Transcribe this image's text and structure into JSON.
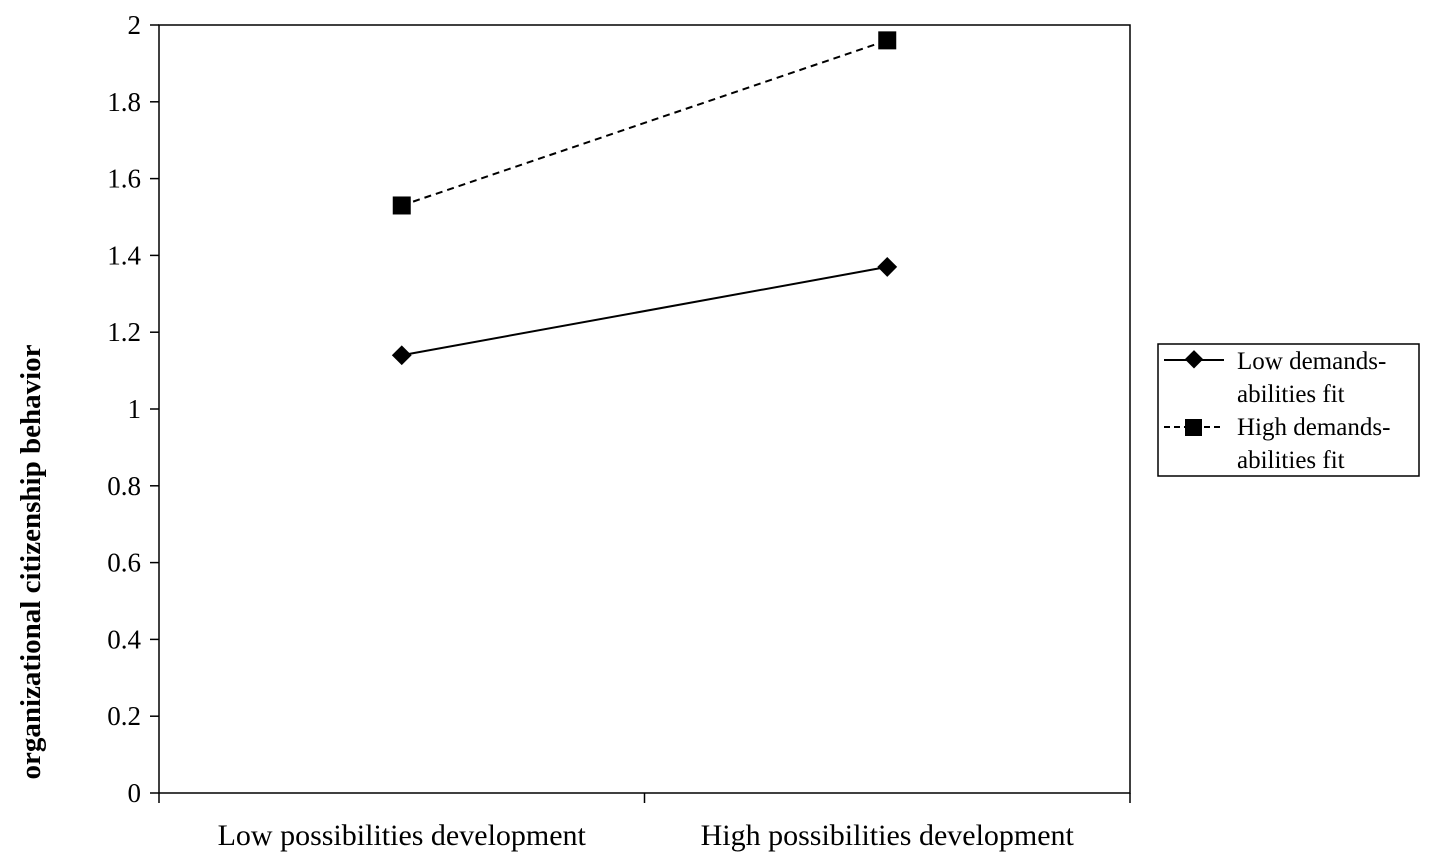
{
  "chart_data": {
    "type": "line",
    "title": "",
    "xlabel": "",
    "ylabel": "organizational citizenship behavior",
    "categories": [
      "Low possibilities development",
      "High possibilities development"
    ],
    "ylim": [
      0,
      2
    ],
    "yticks": [
      0,
      0.2,
      0.4,
      0.6,
      0.8,
      1,
      1.2,
      1.4,
      1.6,
      1.8,
      2
    ],
    "ytick_labels": [
      "0",
      "0.2",
      "0.4",
      "0.6",
      "0.8",
      "1",
      "1.2",
      "1.4",
      "1.6",
      "1.8",
      "2"
    ],
    "grid": false,
    "legend_position": "right",
    "series": [
      {
        "name_lines": [
          "Low demands-",
          "abilities fit"
        ],
        "values": [
          1.14,
          1.37
        ],
        "marker": "diamond",
        "line_style": "solid",
        "color": "#000000"
      },
      {
        "name_lines": [
          "High demands-",
          "abilities fit"
        ],
        "values": [
          1.53,
          1.96
        ],
        "marker": "square",
        "line_style": "dashed",
        "color": "#000000"
      }
    ]
  }
}
